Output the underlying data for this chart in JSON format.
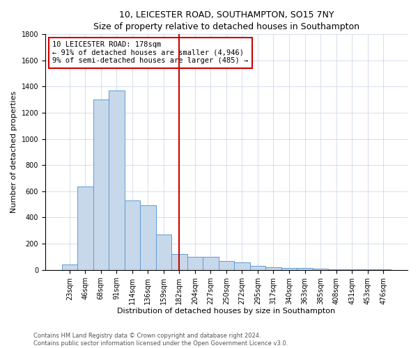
{
  "title": "10, LEICESTER ROAD, SOUTHAMPTON, SO15 7NY",
  "subtitle": "Size of property relative to detached houses in Southampton",
  "xlabel": "Distribution of detached houses by size in Southampton",
  "ylabel": "Number of detached properties",
  "footnote1": "Contains HM Land Registry data © Crown copyright and database right 2024.",
  "footnote2": "Contains public sector information licensed under the Open Government Licence v3.0.",
  "annotation_line1": "10 LEICESTER ROAD: 178sqm",
  "annotation_line2": "← 91% of detached houses are smaller (4,946)",
  "annotation_line3": "9% of semi-detached houses are larger (485) →",
  "categories": [
    "23sqm",
    "46sqm",
    "68sqm",
    "91sqm",
    "114sqm",
    "136sqm",
    "159sqm",
    "182sqm",
    "204sqm",
    "227sqm",
    "250sqm",
    "272sqm",
    "295sqm",
    "317sqm",
    "340sqm",
    "363sqm",
    "385sqm",
    "408sqm",
    "431sqm",
    "453sqm",
    "476sqm"
  ],
  "values": [
    40,
    637,
    1300,
    1370,
    530,
    490,
    270,
    120,
    100,
    100,
    65,
    55,
    30,
    22,
    15,
    12,
    8,
    5,
    4,
    3,
    2
  ],
  "bar_color": "#c8d8eb",
  "bar_edge_color": "#5b9bd5",
  "vline_color": "#cc0000",
  "annotation_box_color": "#cc0000",
  "background_color": "#ffffff",
  "grid_color": "#d0d8e8",
  "ylim": [
    0,
    1800
  ],
  "yticks": [
    0,
    200,
    400,
    600,
    800,
    1000,
    1200,
    1400,
    1600,
    1800
  ],
  "title_fontsize": 9,
  "subtitle_fontsize": 8.5,
  "tick_fontsize": 7,
  "ylabel_fontsize": 8,
  "xlabel_fontsize": 8,
  "footnote_fontsize": 6
}
